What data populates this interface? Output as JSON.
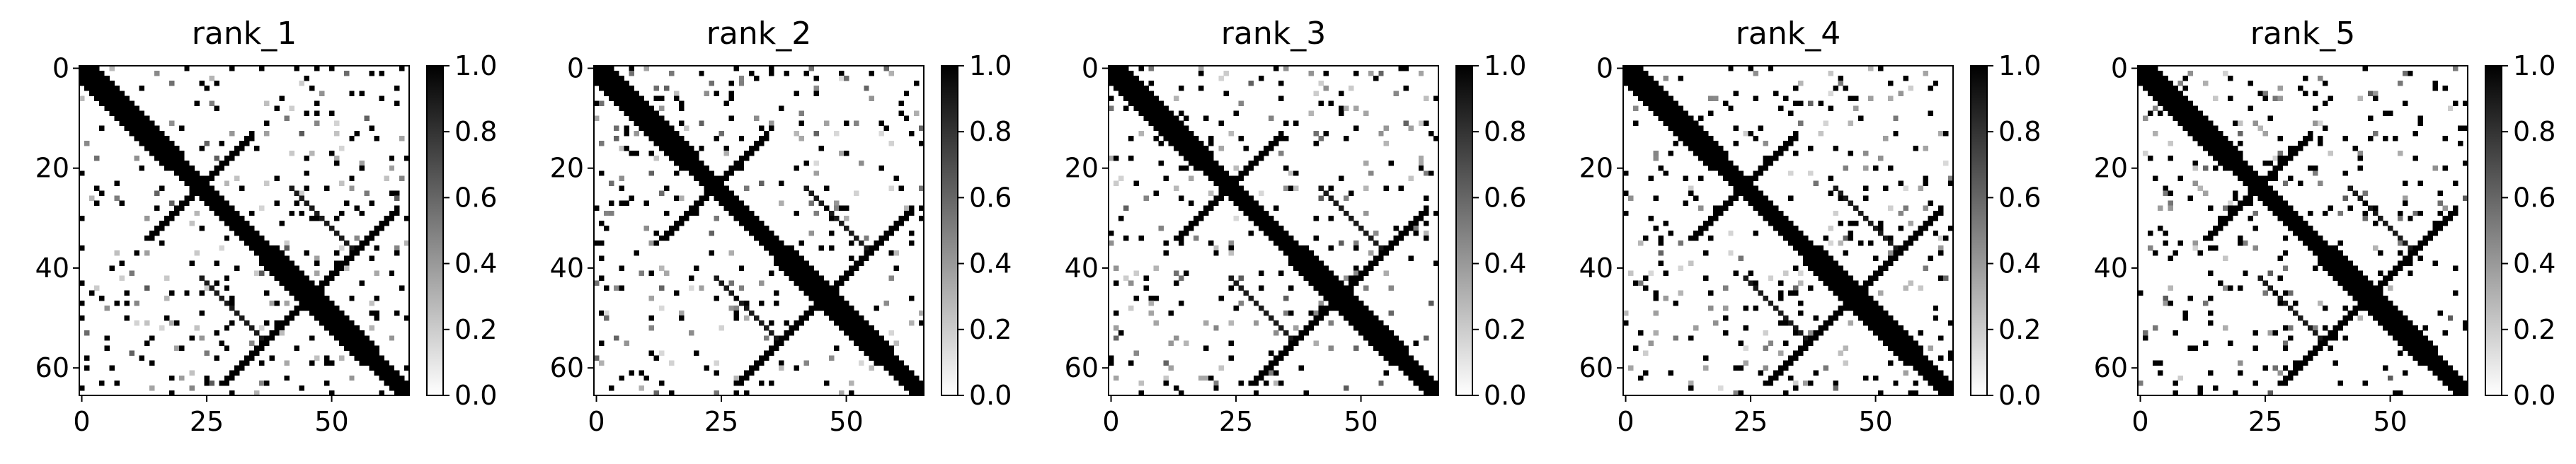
{
  "chart_data": [
    {
      "type": "heatmap",
      "title": "rank_1",
      "x_ticks": [
        "0",
        "25",
        "50"
      ],
      "y_ticks": [
        "0",
        "20",
        "40",
        "60"
      ],
      "colorbar_ticks": [
        "0.0",
        "0.2",
        "0.4",
        "0.6",
        "0.8",
        "1.0"
      ],
      "matrix_size": 66,
      "value_range": [
        0,
        1
      ],
      "colormap": "Greys (0 = white, 1 = black)",
      "structure": "symmetric contact map: thick main diagonal band, secondary diagonals from ~(12,32) and ~(30,62) plus symmetric counterparts, scattered off-diagonal contacts"
    },
    {
      "type": "heatmap",
      "title": "rank_2",
      "x_ticks": [
        "0",
        "25",
        "50"
      ],
      "y_ticks": [
        "0",
        "20",
        "40",
        "60"
      ],
      "colorbar_ticks": [
        "0.0",
        "0.2",
        "0.4",
        "0.6",
        "0.8",
        "1.0"
      ],
      "matrix_size": 66,
      "value_range": [
        0,
        1
      ],
      "colormap": "Greys (0 = white, 1 = black)"
    },
    {
      "type": "heatmap",
      "title": "rank_3",
      "x_ticks": [
        "0",
        "25",
        "50"
      ],
      "y_ticks": [
        "0",
        "20",
        "40",
        "60"
      ],
      "colorbar_ticks": [
        "0.0",
        "0.2",
        "0.4",
        "0.6",
        "0.8",
        "1.0"
      ],
      "matrix_size": 66,
      "value_range": [
        0,
        1
      ],
      "colormap": "Greys (0 = white, 1 = black)"
    },
    {
      "type": "heatmap",
      "title": "rank_4",
      "x_ticks": [
        "0",
        "25",
        "50"
      ],
      "y_ticks": [
        "0",
        "20",
        "40",
        "60"
      ],
      "colorbar_ticks": [
        "0.0",
        "0.2",
        "0.4",
        "0.6",
        "0.8",
        "1.0"
      ],
      "matrix_size": 66,
      "value_range": [
        0,
        1
      ],
      "colormap": "Greys (0 = white, 1 = black)"
    },
    {
      "type": "heatmap",
      "title": "rank_5",
      "x_ticks": [
        "0",
        "25",
        "50"
      ],
      "y_ticks": [
        "0",
        "20",
        "40",
        "60"
      ],
      "colorbar_ticks": [
        "0.0",
        "0.2",
        "0.4",
        "0.6",
        "0.8",
        "1.0"
      ],
      "matrix_size": 66,
      "value_range": [
        0,
        1
      ],
      "colormap": "Greys (0 = white, 1 = black)"
    }
  ]
}
